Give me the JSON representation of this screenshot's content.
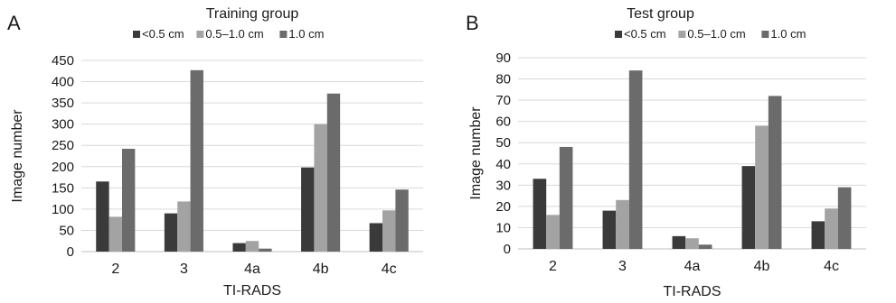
{
  "chart_data": [
    {
      "panel_label": "A",
      "type": "bar",
      "title": "Training group",
      "xlabel": "TI-RADS",
      "ylabel": "Image number",
      "categories": [
        "2",
        "3",
        "4a",
        "4b",
        "4c"
      ],
      "ylim": [
        0,
        450
      ],
      "yticks": [
        0,
        50,
        100,
        150,
        200,
        250,
        300,
        350,
        400,
        450
      ],
      "grid": true,
      "legend_position": "top",
      "series": [
        {
          "name": "<0.5 cm",
          "color": "#3a3a3a",
          "values": [
            165,
            90,
            20,
            198,
            67
          ]
        },
        {
          "name": "0.5–1.0 cm",
          "color": "#a3a3a3",
          "values": [
            82,
            118,
            25,
            300,
            97
          ]
        },
        {
          "name": "1.0 cm",
          "color": "#6b6b6b",
          "values": [
            242,
            427,
            7,
            372,
            146
          ]
        }
      ]
    },
    {
      "panel_label": "B",
      "type": "bar",
      "title": "Test group",
      "xlabel": "TI-RADS",
      "ylabel": "Image number",
      "categories": [
        "2",
        "3",
        "4a",
        "4b",
        "4c"
      ],
      "ylim": [
        0,
        90
      ],
      "yticks": [
        0,
        10,
        20,
        30,
        40,
        50,
        60,
        70,
        80,
        90
      ],
      "grid": true,
      "legend_position": "top",
      "series": [
        {
          "name": "<0.5 cm",
          "color": "#3a3a3a",
          "values": [
            33,
            18,
            6,
            39,
            13
          ]
        },
        {
          "name": "0.5–1.0 cm",
          "color": "#a3a3a3",
          "values": [
            16,
            23,
            5,
            58,
            19
          ]
        },
        {
          "name": "1.0 cm",
          "color": "#6b6b6b",
          "values": [
            48,
            84,
            2,
            72,
            29
          ]
        }
      ]
    }
  ]
}
